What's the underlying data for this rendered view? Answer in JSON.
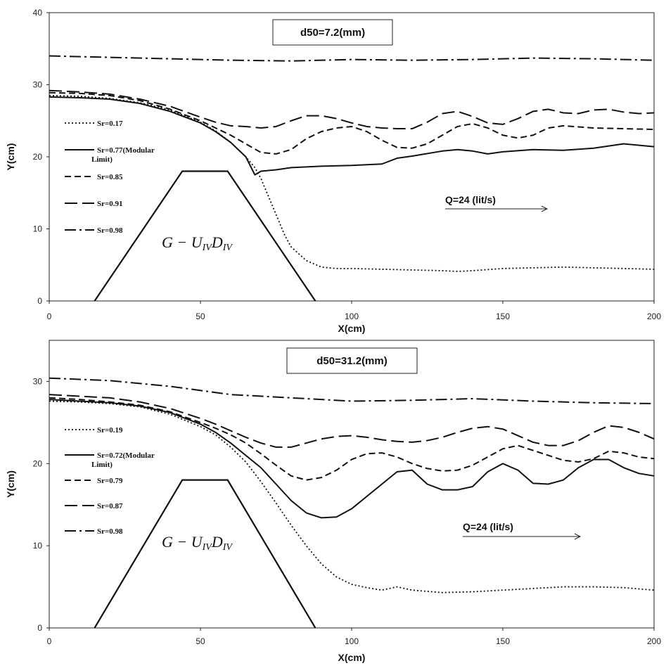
{
  "chart_data": [
    {
      "type": "line",
      "xlabel": "X(cm)",
      "ylabel": "Y(cm)",
      "xlim": [
        0,
        200
      ],
      "ylim": [
        0,
        40
      ],
      "xticks": [
        "0",
        "50",
        "100",
        "150",
        "200"
      ],
      "yticks": [
        "0",
        "10",
        "20",
        "30",
        "40"
      ],
      "grid": false,
      "legend_position": "left",
      "annotations": {
        "box_text": "d50=7.2(mm)",
        "flow_text": "Q=24 (lit/s)",
        "shape_text": "G − U",
        "shape_sub1": "IV",
        "shape_mid": "D",
        "shape_sub2": "IV"
      },
      "structure": {
        "x": [
          15,
          44,
          59,
          88
        ],
        "y": [
          0,
          18,
          18,
          0
        ]
      },
      "series": [
        {
          "name": "Sr=0.17",
          "style": "dotted",
          "x": [
            0,
            10,
            20,
            30,
            40,
            50,
            55,
            60,
            65,
            68,
            70,
            72,
            75,
            78,
            80,
            85,
            90,
            95,
            100,
            110,
            120,
            130,
            135,
            140,
            150,
            160,
            170,
            180,
            190,
            200
          ],
          "y": [
            28.5,
            28.4,
            28.1,
            27.5,
            26.5,
            24.8,
            23.6,
            22.0,
            20.0,
            18.5,
            17.0,
            15.0,
            12.0,
            9.0,
            7.5,
            5.6,
            4.7,
            4.5,
            4.5,
            4.4,
            4.3,
            4.2,
            4.1,
            4.2,
            4.5,
            4.6,
            4.7,
            4.6,
            4.5,
            4.4
          ]
        },
        {
          "name": "Sr=0.77(Modular Limit)",
          "style": "solid",
          "x": [
            0,
            10,
            20,
            30,
            40,
            50,
            55,
            60,
            65,
            68,
            70,
            75,
            80,
            90,
            100,
            110,
            115,
            120,
            130,
            135,
            140,
            145,
            150,
            160,
            170,
            180,
            190,
            200
          ],
          "y": [
            28.3,
            28.2,
            28.0,
            27.4,
            26.3,
            24.7,
            23.5,
            22.0,
            20.0,
            17.5,
            18.0,
            18.2,
            18.5,
            18.7,
            18.8,
            19.0,
            19.8,
            20.1,
            20.8,
            21.0,
            20.8,
            20.4,
            20.7,
            21.0,
            20.9,
            21.2,
            21.8,
            21.4
          ]
        },
        {
          "name": "Sr=0.85",
          "style": "dashed",
          "x": [
            0,
            10,
            20,
            30,
            40,
            50,
            55,
            60,
            65,
            70,
            75,
            80,
            85,
            90,
            95,
            100,
            105,
            110,
            115,
            120,
            125,
            130,
            135,
            140,
            145,
            150,
            155,
            160,
            165,
            170,
            180,
            190,
            200
          ],
          "y": [
            28.9,
            28.8,
            28.5,
            27.8,
            26.6,
            25.0,
            24.0,
            23.0,
            21.8,
            20.6,
            20.4,
            21.0,
            22.5,
            23.5,
            24.0,
            24.2,
            23.5,
            22.3,
            21.3,
            21.2,
            21.8,
            23.0,
            24.2,
            24.6,
            24.0,
            23.0,
            22.6,
            23.0,
            24.0,
            24.3,
            24.0,
            23.9,
            23.8
          ]
        },
        {
          "name": "Sr=0.91",
          "style": "longdash",
          "x": [
            0,
            10,
            20,
            30,
            40,
            50,
            55,
            60,
            65,
            70,
            75,
            80,
            85,
            90,
            95,
            100,
            105,
            110,
            115,
            120,
            125,
            130,
            135,
            140,
            145,
            150,
            155,
            160,
            165,
            170,
            175,
            180,
            185,
            190,
            195,
            200
          ],
          "y": [
            29.2,
            29.0,
            28.7,
            28.0,
            27.0,
            25.5,
            24.8,
            24.3,
            24.2,
            24.0,
            24.2,
            25.0,
            25.7,
            25.7,
            25.3,
            24.7,
            24.2,
            24.0,
            23.9,
            23.9,
            24.8,
            26.0,
            26.3,
            25.6,
            24.7,
            24.5,
            25.3,
            26.3,
            26.6,
            26.1,
            26.0,
            26.5,
            26.6,
            26.2,
            26.0,
            26.1
          ]
        },
        {
          "name": "Sr=0.98",
          "style": "dashdot",
          "x": [
            0,
            20,
            40,
            60,
            80,
            100,
            120,
            140,
            160,
            180,
            200
          ],
          "y": [
            34.0,
            33.8,
            33.6,
            33.4,
            33.3,
            33.5,
            33.4,
            33.5,
            33.7,
            33.6,
            33.4
          ]
        }
      ]
    },
    {
      "type": "line",
      "xlabel": "X(cm)",
      "ylabel": "Y(cm)",
      "xlim": [
        0,
        200
      ],
      "ylim": [
        0,
        35
      ],
      "xticks": [
        "0",
        "50",
        "100",
        "150",
        "200"
      ],
      "yticks": [
        "0",
        "10",
        "20",
        "30"
      ],
      "grid": false,
      "legend_position": "left",
      "annotations": {
        "box_text": "d50=31.2(mm)",
        "flow_text": "Q=24 (lit/s)",
        "shape_text": "G − U",
        "shape_sub1": "IV",
        "shape_mid": "D",
        "shape_sub2": "IV"
      },
      "structure": {
        "x": [
          15,
          44,
          59,
          88
        ],
        "y": [
          0,
          18,
          18,
          0
        ]
      },
      "series": [
        {
          "name": "Sr=0.19",
          "style": "dotted",
          "x": [
            0,
            10,
            20,
            30,
            40,
            50,
            55,
            60,
            65,
            70,
            75,
            80,
            85,
            90,
            95,
            100,
            105,
            110,
            115,
            120,
            130,
            140,
            150,
            160,
            170,
            180,
            190,
            200
          ],
          "y": [
            27.6,
            27.5,
            27.3,
            26.9,
            26.0,
            24.5,
            23.5,
            22.0,
            20.2,
            17.8,
            15.2,
            12.5,
            10.0,
            7.8,
            6.2,
            5.3,
            4.9,
            4.6,
            5.0,
            4.6,
            4.3,
            4.4,
            4.6,
            4.8,
            5.0,
            5.0,
            4.9,
            4.6
          ]
        },
        {
          "name": "Sr=0.72(Modular Limit)",
          "style": "solid",
          "x": [
            0,
            10,
            20,
            30,
            40,
            50,
            55,
            60,
            65,
            70,
            75,
            80,
            85,
            90,
            95,
            100,
            105,
            110,
            115,
            120,
            125,
            130,
            135,
            140,
            145,
            150,
            155,
            160,
            165,
            170,
            175,
            180,
            185,
            190,
            195,
            200
          ],
          "y": [
            27.8,
            27.6,
            27.4,
            27.0,
            26.2,
            24.8,
            23.8,
            22.5,
            21.0,
            19.5,
            17.5,
            15.5,
            14.0,
            13.4,
            13.5,
            14.5,
            16.0,
            17.5,
            19.0,
            19.2,
            17.5,
            16.8,
            16.8,
            17.2,
            19.0,
            20.0,
            19.2,
            17.6,
            17.5,
            18.0,
            19.5,
            20.5,
            20.5,
            19.5,
            18.8,
            18.5
          ]
        },
        {
          "name": "Sr=0.79",
          "style": "dashed",
          "x": [
            0,
            10,
            20,
            30,
            40,
            50,
            55,
            60,
            65,
            70,
            75,
            80,
            85,
            90,
            95,
            100,
            105,
            110,
            115,
            120,
            125,
            130,
            135,
            140,
            145,
            150,
            155,
            160,
            165,
            170,
            175,
            180,
            185,
            190,
            195,
            200
          ],
          "y": [
            28.0,
            27.8,
            27.5,
            27.1,
            26.3,
            25.0,
            24.3,
            23.5,
            22.5,
            21.2,
            19.8,
            18.5,
            18.0,
            18.3,
            19.2,
            20.5,
            21.2,
            21.3,
            20.8,
            20.0,
            19.4,
            19.1,
            19.2,
            19.8,
            20.8,
            21.8,
            22.2,
            21.6,
            21.0,
            20.4,
            20.2,
            20.6,
            21.5,
            21.3,
            20.8,
            20.6
          ]
        },
        {
          "name": "Sr=0.87",
          "style": "longdash",
          "x": [
            0,
            10,
            20,
            30,
            40,
            50,
            55,
            60,
            65,
            70,
            75,
            80,
            85,
            90,
            95,
            100,
            105,
            110,
            115,
            120,
            125,
            130,
            135,
            140,
            145,
            150,
            155,
            160,
            165,
            170,
            175,
            180,
            185,
            190,
            195,
            200
          ],
          "y": [
            28.4,
            28.2,
            28.0,
            27.5,
            26.7,
            25.5,
            24.8,
            24.0,
            23.2,
            22.5,
            22.0,
            22.0,
            22.5,
            23.0,
            23.3,
            23.4,
            23.2,
            22.9,
            22.7,
            22.6,
            22.8,
            23.2,
            23.8,
            24.3,
            24.5,
            24.2,
            23.4,
            22.6,
            22.2,
            22.2,
            22.8,
            23.8,
            24.6,
            24.4,
            23.8,
            23.0
          ]
        },
        {
          "name": "Sr=0.98",
          "style": "dashdot",
          "x": [
            0,
            20,
            40,
            60,
            80,
            100,
            120,
            140,
            160,
            180,
            200
          ],
          "y": [
            30.4,
            30.1,
            29.4,
            28.4,
            28.0,
            27.6,
            27.7,
            27.9,
            27.6,
            27.4,
            27.3
          ]
        }
      ]
    }
  ]
}
